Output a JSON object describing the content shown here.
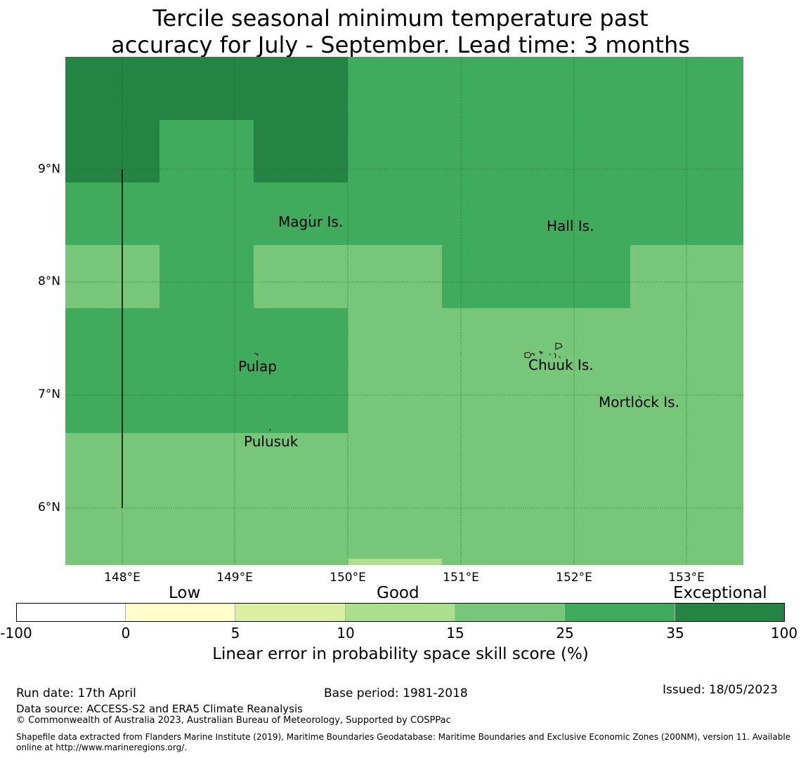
{
  "title": {
    "line1": "Tercile seasonal minimum temperature past",
    "line2": "accuracy for July - September. Lead time: 3 months"
  },
  "map": {
    "lat_labels": [
      "9°N",
      "8°N",
      "7°N",
      "6°N"
    ],
    "lon_labels": [
      "148°E",
      "149°E",
      "150°E",
      "151°E",
      "152°E",
      "153°E"
    ],
    "places": [
      "Magur Is.",
      "Hall Is.",
      "Pulap",
      "Chuuk Is.",
      "Mortlock Is.",
      "Pulusuk"
    ],
    "colors": {
      "lt15": "#addf8e",
      "r15_25": "#78c679",
      "r25_35": "#41ab5d",
      "r35_100": "#238443"
    }
  },
  "colorbar": {
    "categories": [
      "Low",
      "Good",
      "Exceptional"
    ],
    "ticks": [
      "-100",
      "0",
      "5",
      "10",
      "15",
      "25",
      "35",
      "100"
    ],
    "colors": [
      "#ffffff",
      "#ffffcc",
      "#d9f0a3",
      "#addd8e",
      "#78c679",
      "#41ab5d",
      "#238443"
    ],
    "label": "Linear error in probability space skill score (%)"
  },
  "footer": {
    "run_date": "Run date: 17th April",
    "base_period": "Base period: 1981-2018",
    "issued": "Issued: 18/05/2023",
    "data_source": "Data source: ACCESS-S2 and ERA5 Climate Reanalysis",
    "copyright": "© Commonwealth of Australia 2023, Australian Bureau of Meteorology, Supported by COSPPac",
    "shapefile_line1": "Shapefile data extracted from Flanders Marine Institute (2019), Maritime Boundaries Geodatabase: Maritime Boundaries and Exclusive Economic Zones (200NM), version 11. Available",
    "shapefile_line2": "online at http://www.marineregions.org/."
  }
}
